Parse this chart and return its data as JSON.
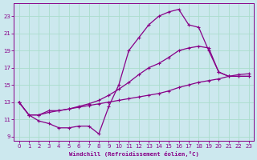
{
  "bg_color": "#cce8ee",
  "line_color": "#880088",
  "grid_color": "#aaddcc",
  "xlabel": "Windchill (Refroidissement éolien,°C)",
  "ylabel_ticks": [
    9,
    11,
    13,
    15,
    17,
    19,
    21,
    23
  ],
  "xlim": [
    -0.5,
    23.5
  ],
  "ylim": [
    8.5,
    24.5
  ],
  "xticks": [
    0,
    1,
    2,
    3,
    4,
    5,
    6,
    7,
    8,
    9,
    10,
    11,
    12,
    13,
    14,
    15,
    16,
    17,
    18,
    19,
    20,
    21,
    22,
    23
  ],
  "series1_x": [
    0,
    1,
    2,
    3,
    4,
    5,
    6,
    7,
    8,
    9,
    10,
    11,
    12,
    13,
    14,
    15,
    16,
    17,
    18,
    19,
    20,
    21,
    22,
    23
  ],
  "series1_y": [
    13.0,
    11.5,
    10.8,
    10.5,
    10.0,
    10.0,
    10.2,
    10.2,
    9.3,
    12.5,
    15.0,
    19.0,
    20.5,
    22.0,
    23.0,
    23.5,
    23.8,
    22.0,
    21.7,
    19.0,
    16.5,
    16.0,
    16.0,
    16.0
  ],
  "series2_x": [
    0,
    1,
    2,
    3,
    4,
    5,
    6,
    7,
    8,
    9,
    10,
    11,
    12,
    13,
    14,
    15,
    16,
    17,
    18,
    19,
    20,
    21,
    22,
    23
  ],
  "series2_y": [
    13.0,
    11.5,
    11.5,
    12.0,
    12.0,
    12.2,
    12.5,
    12.8,
    13.2,
    13.8,
    14.5,
    15.3,
    16.2,
    17.0,
    17.5,
    18.2,
    19.0,
    19.3,
    19.5,
    19.3,
    16.5,
    16.0,
    16.0,
    16.0
  ],
  "series3_x": [
    0,
    1,
    2,
    3,
    4,
    5,
    6,
    7,
    8,
    9,
    10,
    11,
    12,
    13,
    14,
    15,
    16,
    17,
    18,
    19,
    20,
    21,
    22,
    23
  ],
  "series3_y": [
    13.0,
    11.5,
    11.5,
    11.8,
    12.0,
    12.2,
    12.4,
    12.6,
    12.8,
    13.0,
    13.2,
    13.4,
    13.6,
    13.8,
    14.0,
    14.3,
    14.7,
    15.0,
    15.3,
    15.5,
    15.7,
    16.0,
    16.2,
    16.3
  ]
}
